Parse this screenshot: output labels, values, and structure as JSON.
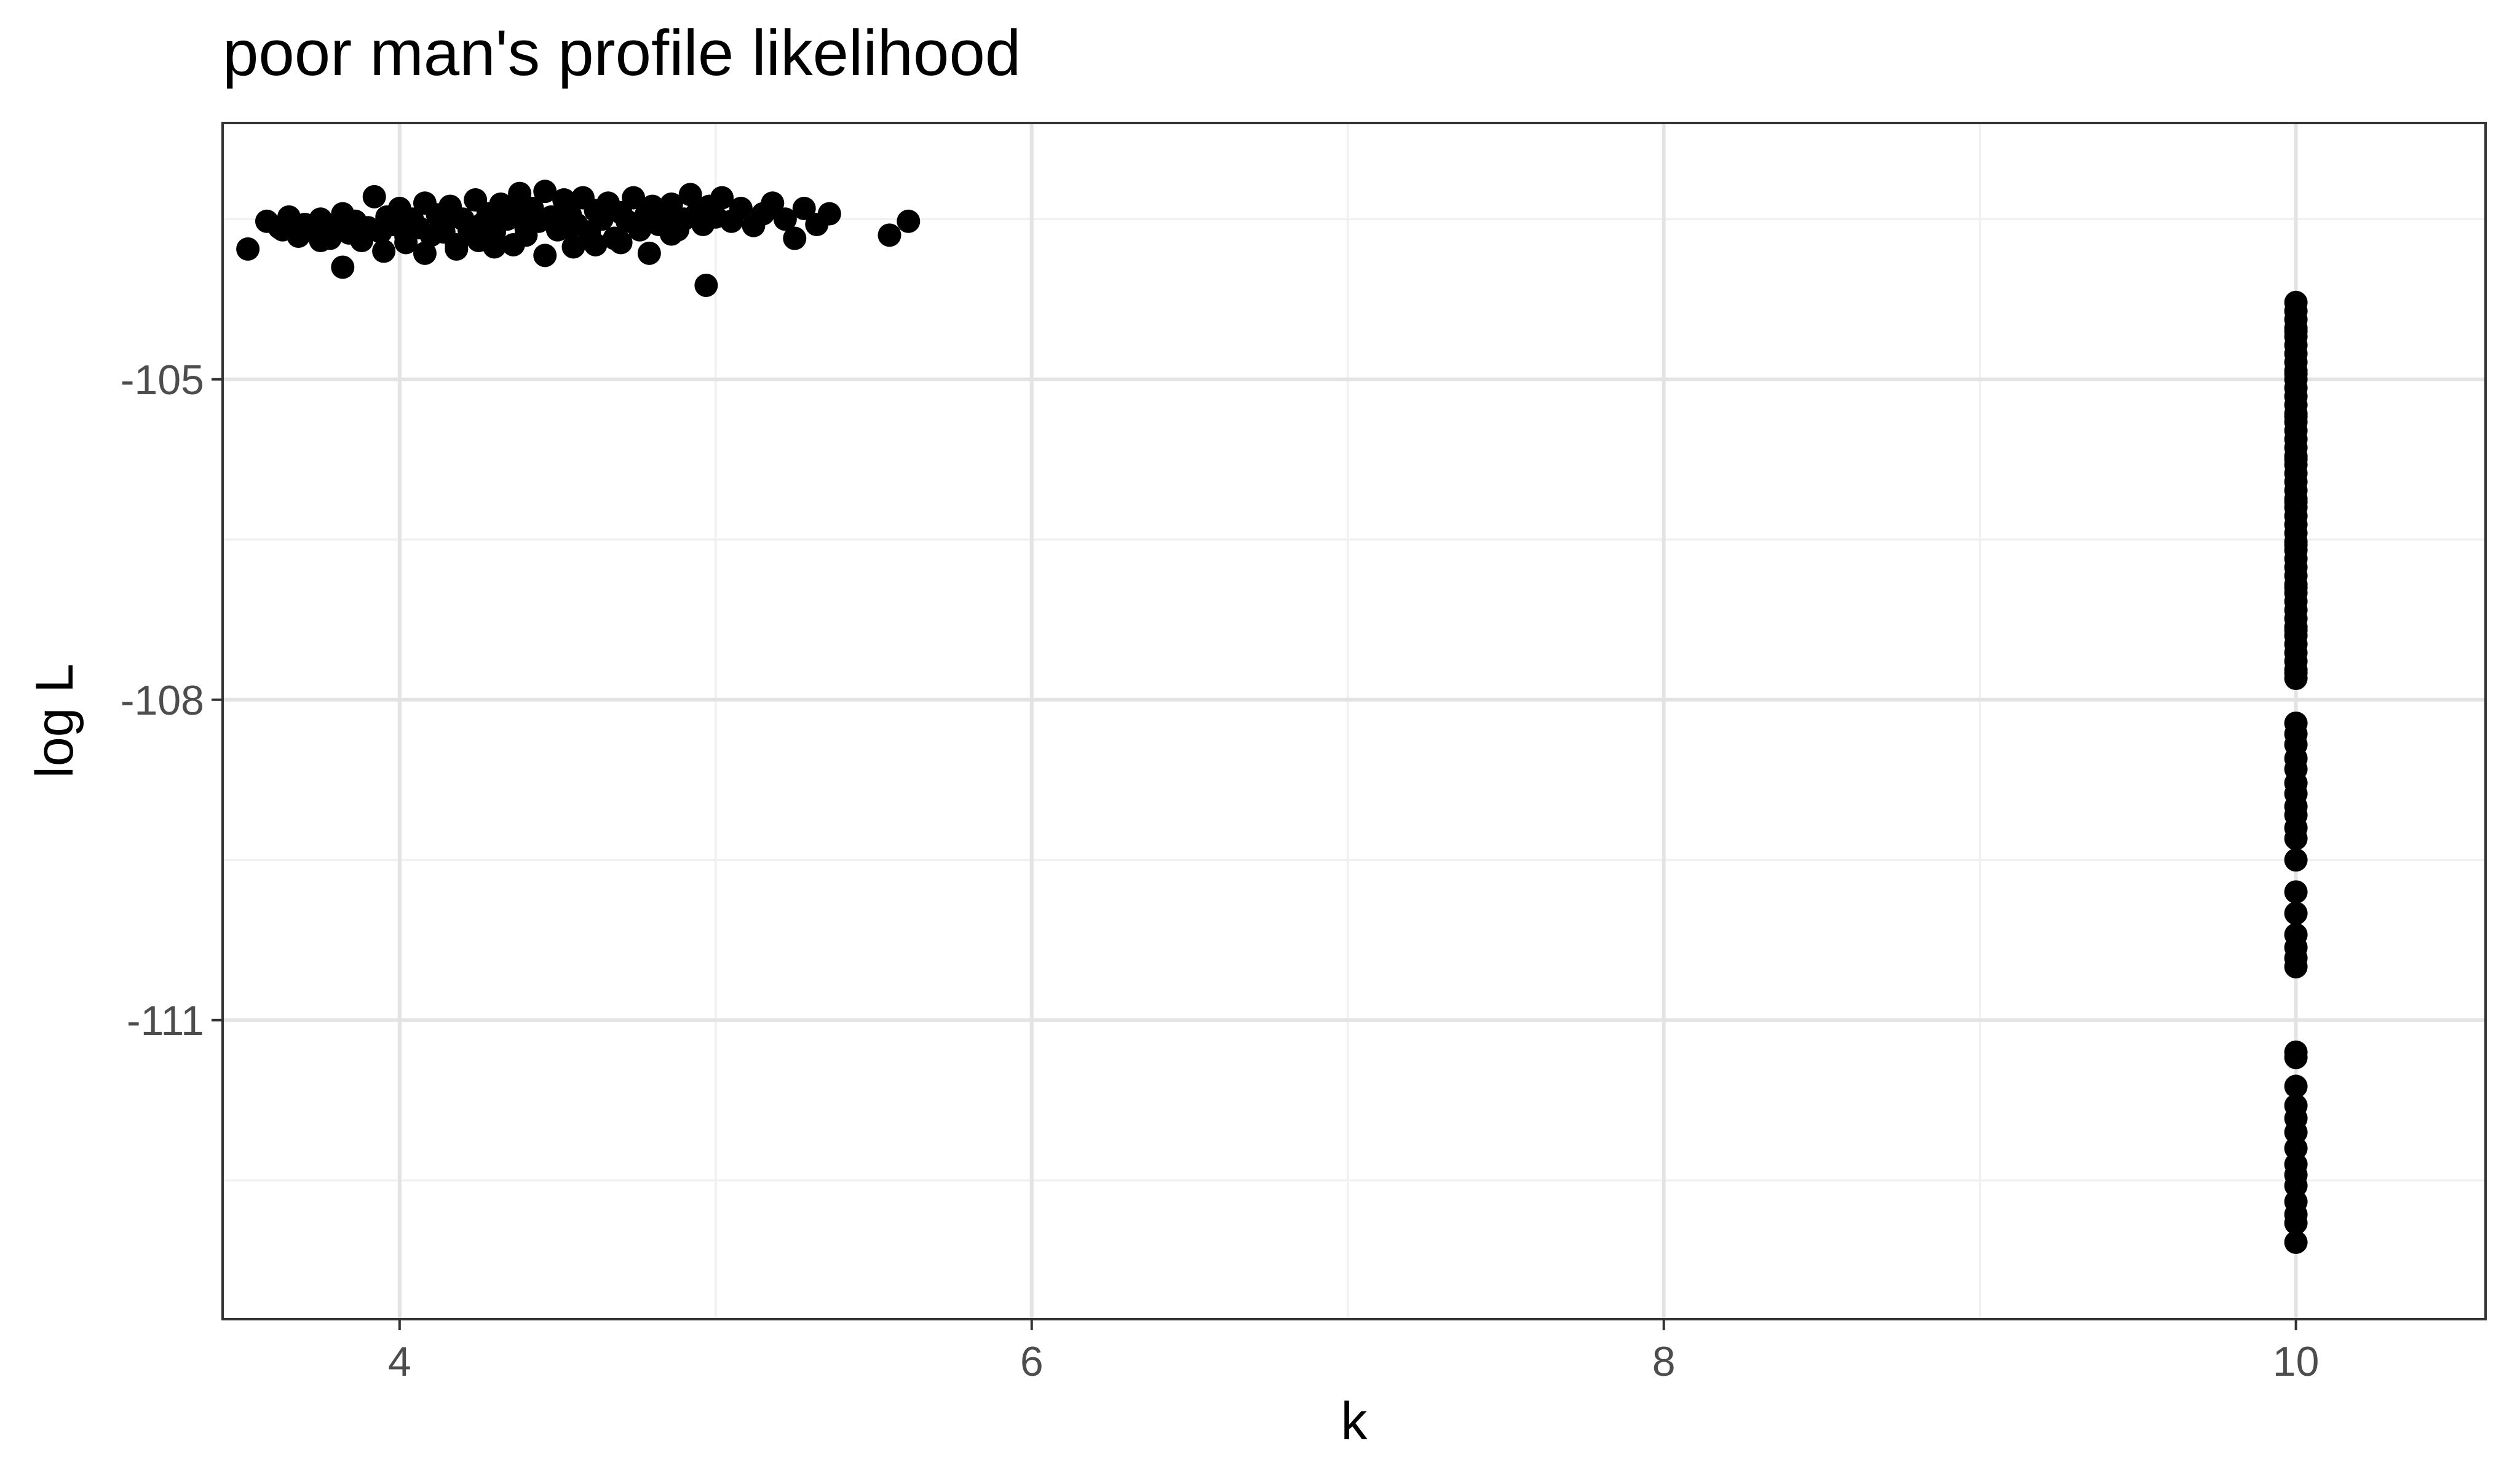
{
  "chart_data": {
    "type": "scatter",
    "title": "poor man's profile likelihood",
    "xlabel": "k",
    "ylabel": "log L",
    "xlim": [
      3.44,
      10.6
    ],
    "ylim": [
      -113.8,
      -102.6
    ],
    "x_ticks": [
      4,
      6,
      8,
      10
    ],
    "y_ticks": [
      -105,
      -108,
      -111
    ],
    "grid": true,
    "legend": "none",
    "point_color": "#000000",
    "clusters": [
      {
        "note_only_for_reader": "k between ~3.5 and ~5.6, log L near -103.5",
        "x": [
          3.52,
          3.58,
          3.62,
          3.65,
          3.68,
          3.7,
          3.73,
          3.75,
          3.78,
          3.8,
          3.82,
          3.84,
          3.86,
          3.88,
          3.9,
          3.92,
          3.94,
          3.96,
          3.98,
          4.0,
          4.02,
          4.04,
          4.06,
          4.08,
          4.1,
          4.12,
          4.14,
          4.16,
          4.18,
          4.2,
          4.22,
          4.24,
          4.26,
          4.28,
          4.3,
          4.32,
          4.34,
          4.36,
          4.38,
          4.4,
          4.42,
          4.44,
          4.46,
          4.48,
          4.5,
          4.52,
          4.54,
          4.56,
          4.58,
          4.6,
          4.62,
          4.64,
          4.66,
          4.68,
          4.7,
          4.72,
          4.74,
          4.76,
          4.78,
          4.8,
          4.82,
          4.84,
          4.86,
          4.88,
          4.9,
          4.92,
          4.94,
          4.96,
          4.98,
          5.0,
          5.02,
          5.05,
          5.08,
          5.12,
          5.15,
          5.18,
          5.22,
          5.25,
          5.28,
          5.32,
          5.36,
          5.55,
          5.61,
          3.82,
          3.95,
          4.08,
          4.18,
          4.3,
          4.46,
          4.62,
          4.79,
          4.97,
          4.25,
          4.4,
          4.55,
          4.7,
          3.63,
          3.75,
          4.02,
          4.14,
          4.36,
          4.52,
          4.68,
          4.86
        ],
        "y": [
          -103.78,
          -103.52,
          -103.58,
          -103.48,
          -103.66,
          -103.55,
          -103.62,
          -103.5,
          -103.68,
          -103.57,
          -103.45,
          -103.63,
          -103.52,
          -103.7,
          -103.58,
          -103.29,
          -103.62,
          -103.48,
          -103.55,
          -103.4,
          -103.72,
          -103.5,
          -103.58,
          -103.35,
          -103.65,
          -103.46,
          -103.56,
          -103.38,
          -103.74,
          -103.5,
          -103.6,
          -103.32,
          -103.55,
          -103.45,
          -103.62,
          -103.36,
          -103.5,
          -103.44,
          -103.26,
          -103.58,
          -103.4,
          -103.52,
          -103.24,
          -103.48,
          -103.6,
          -103.32,
          -103.46,
          -103.55,
          -103.3,
          -103.62,
          -103.42,
          -103.5,
          -103.35,
          -103.68,
          -103.44,
          -103.52,
          -103.3,
          -103.6,
          -103.46,
          -103.38,
          -103.55,
          -103.42,
          -103.36,
          -103.6,
          -103.5,
          -103.27,
          -103.45,
          -103.55,
          -103.38,
          -103.48,
          -103.3,
          -103.52,
          -103.4,
          -103.56,
          -103.45,
          -103.35,
          -103.5,
          -103.68,
          -103.4,
          -103.55,
          -103.45,
          -103.65,
          -103.52,
          -103.95,
          -103.8,
          -103.82,
          -103.78,
          -103.76,
          -103.84,
          -103.74,
          -103.82,
          -104.12,
          -103.7,
          -103.65,
          -103.76,
          -103.72,
          -103.6,
          -103.7,
          -103.66,
          -103.62,
          -103.74,
          -103.58,
          -103.68,
          -103.64
        ]
      },
      {
        "note_only_for_reader": "k = 10, log L from ~-104.3 to ~-113",
        "x": [
          10,
          10,
          10,
          10,
          10,
          10,
          10,
          10,
          10,
          10,
          10,
          10,
          10,
          10,
          10,
          10,
          10,
          10,
          10,
          10,
          10,
          10,
          10,
          10,
          10,
          10,
          10,
          10,
          10,
          10,
          10,
          10,
          10,
          10,
          10,
          10,
          10,
          10,
          10,
          10,
          10,
          10,
          10,
          10,
          10,
          10,
          10,
          10,
          10,
          10,
          10,
          10,
          10,
          10,
          10,
          10,
          10,
          10,
          10,
          10,
          10,
          10,
          10,
          10,
          10,
          10,
          10,
          10,
          10,
          10,
          10,
          10,
          10,
          10,
          10,
          10,
          10,
          10,
          10,
          10,
          10,
          10,
          10,
          10,
          10,
          10
        ],
        "y": [
          -104.28,
          -104.36,
          -104.44,
          -104.52,
          -104.6,
          -104.68,
          -104.76,
          -104.84,
          -104.92,
          -105.0,
          -105.08,
          -105.16,
          -105.24,
          -105.32,
          -105.4,
          -105.48,
          -105.56,
          -105.64,
          -105.72,
          -105.8,
          -105.88,
          -105.96,
          -106.04,
          -106.12,
          -106.2,
          -106.28,
          -106.36,
          -106.44,
          -106.52,
          -106.6,
          -106.68,
          -106.76,
          -106.84,
          -106.92,
          -107.0,
          -107.08,
          -107.16,
          -107.24,
          -107.32,
          -107.4,
          -107.48,
          -107.56,
          -107.64,
          -107.72,
          -107.8,
          -108.22,
          -108.32,
          -108.42,
          -108.55,
          -108.65,
          -108.78,
          -108.88,
          -109.0,
          -109.08,
          -109.2,
          -109.3,
          -109.5,
          -109.8,
          -110.0,
          -110.2,
          -110.32,
          -110.42,
          -110.5,
          -111.3,
          -111.35,
          -111.62,
          -111.8,
          -111.92,
          -112.05,
          -112.2,
          -112.35,
          -112.45,
          -112.55,
          -112.7,
          -112.82,
          -112.9,
          -113.08,
          -104.55,
          -104.95,
          -105.35,
          -105.75,
          -106.15,
          -106.55,
          -106.95,
          -107.35,
          -107.75
        ]
      }
    ]
  }
}
